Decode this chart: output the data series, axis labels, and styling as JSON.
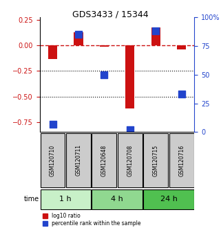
{
  "title": "GDS3433 / 15344",
  "samples": [
    "GSM120710",
    "GSM120711",
    "GSM120648",
    "GSM120708",
    "GSM120715",
    "GSM120716"
  ],
  "log10_ratio": [
    -0.13,
    0.13,
    -0.01,
    -0.62,
    0.18,
    -0.04
  ],
  "percentile_rank": [
    7,
    85,
    50,
    2,
    88,
    33
  ],
  "groups": [
    {
      "label": "1 h",
      "indices": [
        0,
        1
      ],
      "color": "#c8f0c8"
    },
    {
      "label": "4 h",
      "indices": [
        2,
        3
      ],
      "color": "#90d890"
    },
    {
      "label": "24 h",
      "indices": [
        4,
        5
      ],
      "color": "#50c050"
    }
  ],
  "bar_color": "#cc1111",
  "dot_color": "#2244cc",
  "ylim_left": [
    -0.85,
    0.28
  ],
  "ylim_right": [
    0,
    100
  ],
  "yticks_left": [
    0.25,
    0,
    -0.25,
    -0.5,
    -0.75
  ],
  "yticks_right": [
    100,
    75,
    50,
    25,
    0
  ],
  "hline_y": 0,
  "dotline1": -0.25,
  "dotline2": -0.5,
  "legend_red": "log10 ratio",
  "legend_blue": "percentile rank within the sample",
  "time_label": "time",
  "sample_box_color": "#cccccc",
  "bar_width": 0.35,
  "dot_size": 60
}
